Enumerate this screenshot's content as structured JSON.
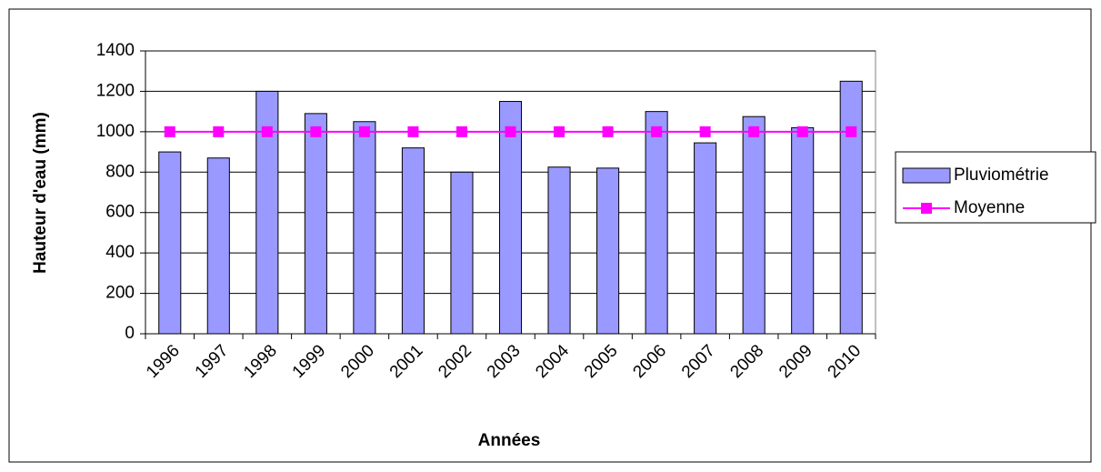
{
  "chart_data": {
    "type": "bar",
    "xlabel": "Années",
    "ylabel": "Hauteur d'eau (mm)",
    "categories": [
      "1996",
      "1997",
      "1998",
      "1999",
      "2000",
      "2001",
      "2002",
      "2003",
      "2004",
      "2005",
      "2006",
      "2007",
      "2008",
      "2009",
      "2010"
    ],
    "series": [
      {
        "name": "Pluviométrie",
        "type": "bar",
        "color": "#9999ff",
        "values": [
          900,
          870,
          1200,
          1090,
          1050,
          920,
          800,
          1150,
          825,
          820,
          1100,
          945,
          1075,
          1020,
          1250
        ]
      },
      {
        "name": "Moyenne",
        "type": "line",
        "color": "#ff00ff",
        "values": [
          1000,
          1000,
          1000,
          1000,
          1000,
          1000,
          1000,
          1000,
          1000,
          1000,
          1000,
          1000,
          1000,
          1000,
          1000
        ]
      }
    ],
    "ylim": [
      0,
      1400
    ],
    "yticks": [
      0,
      200,
      400,
      600,
      800,
      1000,
      1200,
      1400
    ],
    "grid": true,
    "legend": "right"
  }
}
